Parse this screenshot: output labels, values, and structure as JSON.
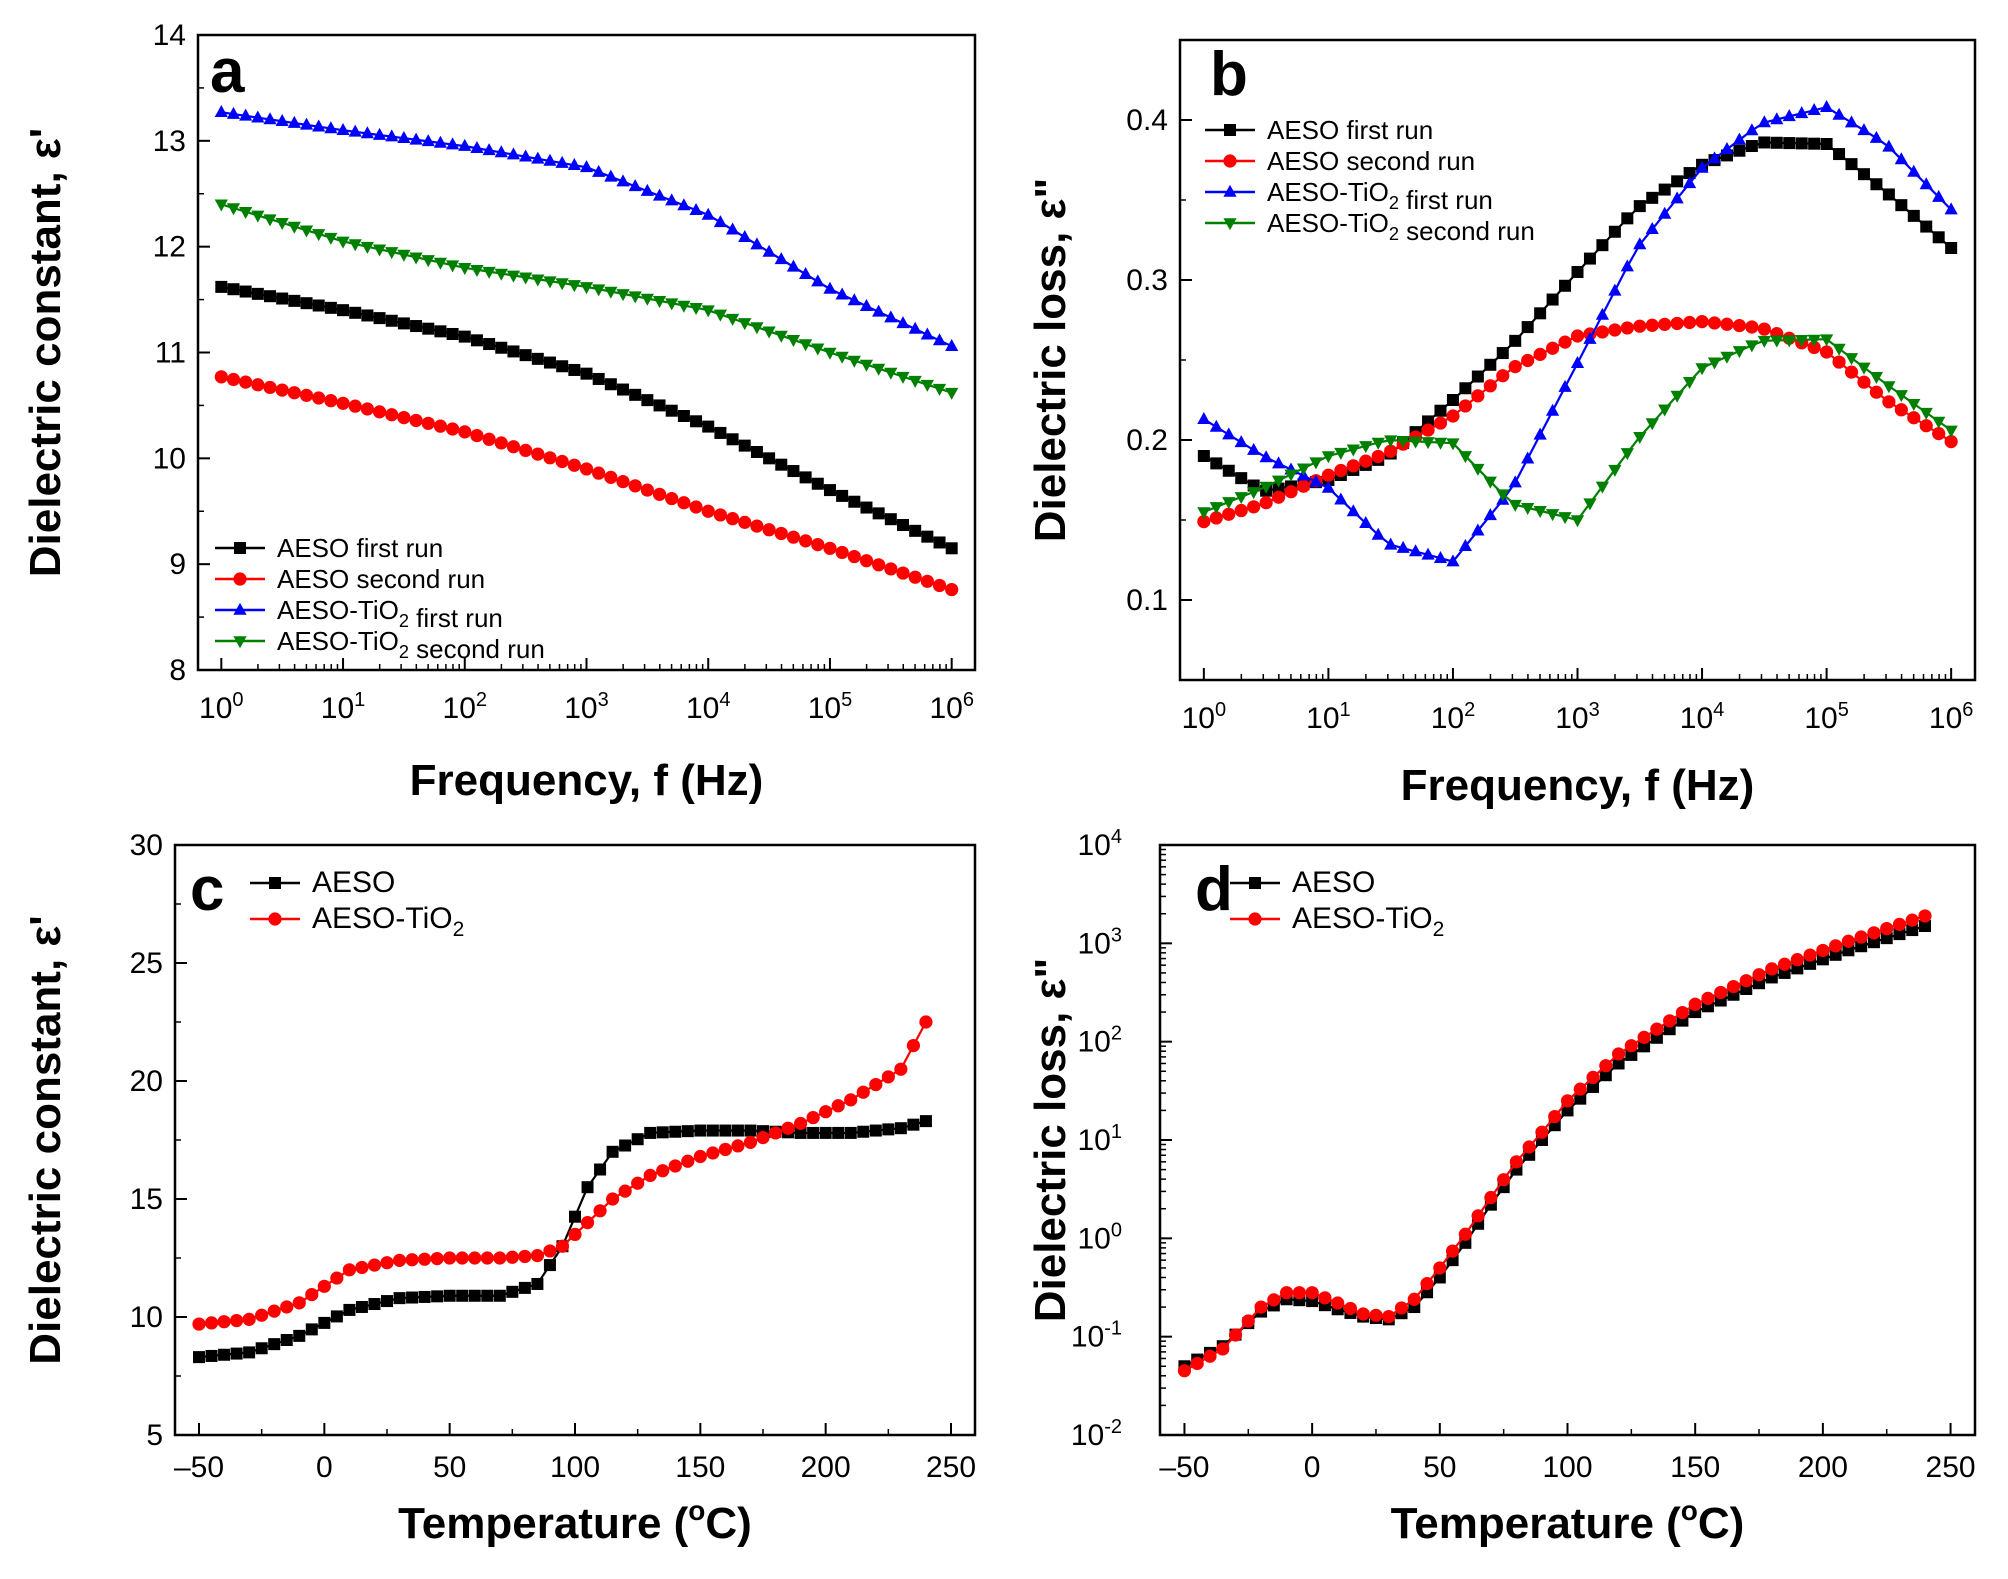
{
  "chart_data": [
    {
      "panel": "a",
      "type": "line",
      "xlabel": "Frequency, f (Hz)",
      "ylabel": "Dielectric constant, ε'",
      "xscale": "log",
      "xlim": [
        1,
        1000000
      ],
      "ylim": [
        8,
        14
      ],
      "yticks": [
        8,
        9,
        10,
        11,
        12,
        13,
        14
      ],
      "xtick_labels": [
        "10⁰",
        "10¹",
        "10²",
        "10³",
        "10⁴",
        "10⁵",
        "10⁶"
      ],
      "legend": "bottom-left",
      "x": [
        1,
        10,
        100,
        1000,
        10000,
        100000,
        1000000
      ],
      "series": [
        {
          "name": "AESO first run",
          "color": "#000000",
          "marker": "square",
          "values": [
            11.62,
            11.4,
            11.15,
            10.8,
            10.3,
            9.7,
            9.15
          ]
        },
        {
          "name": "AESO second run",
          "color": "#ff0000",
          "marker": "circle",
          "values": [
            10.77,
            10.52,
            10.25,
            9.9,
            9.5,
            9.15,
            8.76
          ]
        },
        {
          "name": "AESO-TiO₂ first run",
          "color": "#0000ff",
          "marker": "triangle-up",
          "values": [
            13.27,
            13.1,
            12.95,
            12.75,
            12.3,
            11.6,
            11.06
          ]
        },
        {
          "name": "AESO-TiO₂ second run",
          "color": "#008000",
          "marker": "triangle-down",
          "values": [
            12.4,
            12.05,
            11.8,
            11.62,
            11.4,
            11.0,
            10.62
          ]
        }
      ]
    },
    {
      "panel": "b",
      "type": "line",
      "xlabel": "Frequency, f (Hz)",
      "ylabel": "Dielectric loss, ε\"",
      "xscale": "log",
      "xlim": [
        1,
        1000000
      ],
      "ylim": [
        0.05,
        0.45
      ],
      "yticks": [
        0.1,
        0.2,
        0.3,
        0.4
      ],
      "xtick_labels": [
        "10⁰",
        "10¹",
        "10²",
        "10³",
        "10⁴",
        "10⁵",
        "10⁶"
      ],
      "legend": "top-left",
      "x": [
        1,
        3,
        10,
        30,
        100,
        300,
        1000,
        3000,
        10000,
        30000,
        100000,
        300000,
        1000000
      ],
      "series": [
        {
          "name": "AESO first run",
          "color": "#000000",
          "marker": "square",
          "values": [
            0.19,
            0.168,
            0.175,
            0.19,
            0.225,
            0.26,
            0.305,
            0.345,
            0.372,
            0.386,
            0.385,
            0.355,
            0.32
          ]
        },
        {
          "name": "AESO second run",
          "color": "#ff0000",
          "marker": "circle",
          "values": [
            0.149,
            0.16,
            0.178,
            0.192,
            0.215,
            0.245,
            0.265,
            0.271,
            0.274,
            0.27,
            0.255,
            0.225,
            0.199
          ]
        },
        {
          "name": "AESO-TiO₂ first run",
          "color": "#0000ff",
          "marker": "triangle-up",
          "values": [
            0.213,
            0.19,
            0.17,
            0.135,
            0.124,
            0.17,
            0.248,
            0.32,
            0.37,
            0.398,
            0.408,
            0.385,
            0.344
          ]
        },
        {
          "name": "AESO-TiO₂ second run",
          "color": "#008000",
          "marker": "triangle-down",
          "values": [
            0.155,
            0.17,
            0.19,
            0.2,
            0.198,
            0.16,
            0.15,
            0.2,
            0.245,
            0.262,
            0.263,
            0.235,
            0.206
          ]
        }
      ]
    },
    {
      "panel": "c",
      "type": "line",
      "xlabel": "Temperature (°C)",
      "ylabel": "Dielectric constant, ε'",
      "xlim": [
        -50,
        250
      ],
      "ylim": [
        5,
        30
      ],
      "xticks": [
        -50,
        0,
        50,
        100,
        150,
        200,
        250
      ],
      "yticks": [
        5,
        10,
        15,
        20,
        25,
        30
      ],
      "legend": "top-left",
      "x": [
        -50,
        -30,
        -10,
        10,
        30,
        50,
        70,
        85,
        95,
        105,
        115,
        130,
        150,
        170,
        190,
        210,
        230,
        240
      ],
      "series": [
        {
          "name": "AESO",
          "color": "#000000",
          "marker": "square",
          "values": [
            8.3,
            8.5,
            9.2,
            10.3,
            10.8,
            10.9,
            10.9,
            11.4,
            13.0,
            15.5,
            17.0,
            17.8,
            17.9,
            17.9,
            17.8,
            17.8,
            18.0,
            18.3
          ]
        },
        {
          "name": "AESO-TiO₂",
          "color": "#ff0000",
          "marker": "circle",
          "values": [
            9.7,
            9.9,
            10.6,
            12.0,
            12.4,
            12.5,
            12.5,
            12.6,
            13.0,
            14.0,
            15.0,
            16.0,
            16.8,
            17.4,
            18.2,
            19.2,
            20.5,
            22.5
          ]
        }
      ]
    },
    {
      "panel": "d",
      "type": "line",
      "xlabel": "Temperature (°C)",
      "ylabel": "Dielectric loss, ε\"",
      "yscale": "log",
      "xlim": [
        -50,
        250
      ],
      "ylim": [
        0.01,
        10000
      ],
      "xticks": [
        -50,
        0,
        50,
        100,
        150,
        200,
        250
      ],
      "ytick_labels": [
        "10⁻²",
        "10⁻¹",
        "10⁰",
        "10¹",
        "10²",
        "10³",
        "10⁴"
      ],
      "legend": "top-left",
      "x": [
        -50,
        -35,
        -20,
        -10,
        0,
        10,
        20,
        30,
        40,
        50,
        60,
        70,
        80,
        90,
        100,
        120,
        150,
        180,
        210,
        240
      ],
      "series": [
        {
          "name": "AESO",
          "color": "#000000",
          "marker": "square",
          "values": [
            0.05,
            0.08,
            0.18,
            0.24,
            0.23,
            0.19,
            0.16,
            0.15,
            0.2,
            0.4,
            0.9,
            2.2,
            5.0,
            10,
            20,
            60,
            200,
            450,
            850,
            1500
          ]
        },
        {
          "name": "AESO-TiO₂",
          "color": "#ff0000",
          "marker": "circle",
          "values": [
            0.045,
            0.075,
            0.2,
            0.28,
            0.28,
            0.22,
            0.17,
            0.16,
            0.24,
            0.5,
            1.1,
            2.6,
            6.0,
            12,
            25,
            75,
            240,
            550,
            1050,
            1900
          ]
        }
      ]
    }
  ],
  "panel_labels": [
    "a",
    "b",
    "c",
    "d"
  ]
}
